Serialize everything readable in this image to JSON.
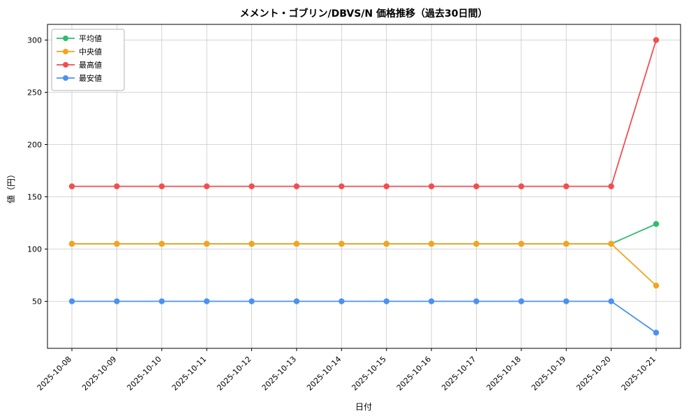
{
  "chart_data": {
    "type": "line",
    "title": "メメント・ゴブリン/DBVS/N 価格推移（過去30日間）",
    "xlabel": "日付",
    "ylabel": "値（円）",
    "x": [
      "2025-10-08",
      "2025-10-09",
      "2025-10-10",
      "2025-10-11",
      "2025-10-12",
      "2025-10-13",
      "2025-10-14",
      "2025-10-15",
      "2025-10-16",
      "2025-10-17",
      "2025-10-18",
      "2025-10-19",
      "2025-10-20",
      "2025-10-21"
    ],
    "series": [
      {
        "name": "平均値",
        "color": "#2dbd6e",
        "values": [
          105,
          105,
          105,
          105,
          105,
          105,
          105,
          105,
          105,
          105,
          105,
          105,
          105,
          124
        ]
      },
      {
        "name": "中央値",
        "color": "#f7a31b",
        "values": [
          105,
          105,
          105,
          105,
          105,
          105,
          105,
          105,
          105,
          105,
          105,
          105,
          105,
          65
        ]
      },
      {
        "name": "最高値",
        "color": "#f24e4e",
        "values": [
          160,
          160,
          160,
          160,
          160,
          160,
          160,
          160,
          160,
          160,
          160,
          160,
          160,
          300
        ]
      },
      {
        "name": "最安値",
        "color": "#4b92f0",
        "values": [
          50,
          50,
          50,
          50,
          50,
          50,
          50,
          50,
          50,
          50,
          50,
          50,
          50,
          20
        ]
      }
    ],
    "yticks": [
      50,
      100,
      150,
      200,
      250,
      300
    ],
    "ylim": [
      5,
      315
    ],
    "grid": true,
    "legend_position": "upper-left",
    "grid_color": "#c8c8c8",
    "spine_color": "#000000",
    "legend_border_color": "#b3b3b3"
  }
}
